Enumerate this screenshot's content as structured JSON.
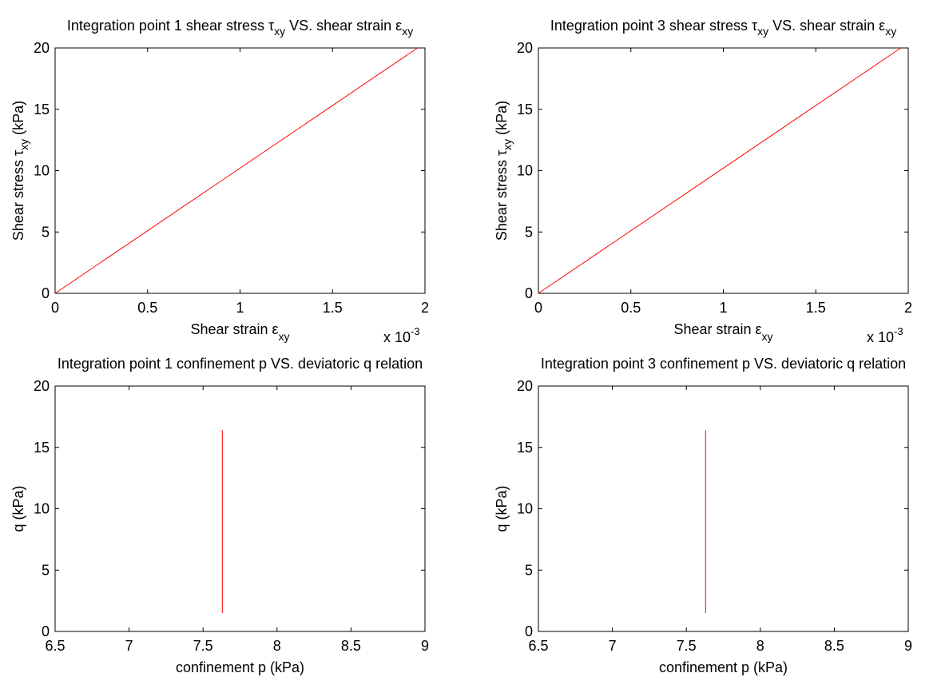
{
  "chart_data": [
    {
      "type": "line",
      "title": "Integration point 1 shear stress",
      "title_sym": "τ",
      "title_sub": "xy",
      "title_mid": " VS. shear strain ",
      "title_sym2": "ε",
      "title_sub2": "xy",
      "xlabel": "Shear strain ",
      "xlabel_sym": "ε",
      "xlabel_sub": "xy",
      "ylabel": "Shear stress ",
      "ylabel_sym": "τ",
      "ylabel_sub": "xy",
      "ylabel_suffix": " (kPa)",
      "exponent_label": "x 10",
      "exponent_power": "-3",
      "xlim": [
        0,
        2
      ],
      "ylim": [
        0,
        20
      ],
      "xticks": [
        "0",
        "0.5",
        "1",
        "1.5",
        "2"
      ],
      "yticks": [
        "0",
        "5",
        "10",
        "15",
        "20"
      ],
      "series": [
        {
          "x": [
            0,
            1.96
          ],
          "y": [
            0,
            20
          ]
        }
      ],
      "line_color": "#ff0000",
      "grid": false
    },
    {
      "type": "line",
      "title": "Integration point 3 shear stress",
      "title_sym": "τ",
      "title_sub": "xy",
      "title_mid": " VS. shear strain ",
      "title_sym2": "ε",
      "title_sub2": "xy",
      "xlabel": "Shear strain ",
      "xlabel_sym": "ε",
      "xlabel_sub": "xy",
      "ylabel": "Shear stress ",
      "ylabel_sym": "τ",
      "ylabel_sub": "xy",
      "ylabel_suffix": " (kPa)",
      "exponent_label": "x 10",
      "exponent_power": "-3",
      "xlim": [
        0,
        2
      ],
      "ylim": [
        0,
        20
      ],
      "xticks": [
        "0",
        "0.5",
        "1",
        "1.5",
        "2"
      ],
      "yticks": [
        "0",
        "5",
        "10",
        "15",
        "20"
      ],
      "series": [
        {
          "x": [
            0,
            1.96
          ],
          "y": [
            0,
            20
          ]
        }
      ],
      "line_color": "#ff0000",
      "grid": false
    },
    {
      "type": "line",
      "title": "Integration point 1 confinement p VS. deviatoric q relation",
      "xlabel": "confinement p (kPa)",
      "ylabel": "q (kPa)",
      "xlim": [
        6.5,
        9
      ],
      "ylim": [
        0,
        20
      ],
      "xticks": [
        "6.5",
        "7",
        "7.5",
        "8",
        "8.5",
        "9"
      ],
      "yticks": [
        "0",
        "5",
        "10",
        "15",
        "20"
      ],
      "series": [
        {
          "x": [
            7.63,
            7.63
          ],
          "y": [
            1.5,
            16.4
          ]
        }
      ],
      "line_color": "#ff0000",
      "grid": false
    },
    {
      "type": "line",
      "title": "Integration point 3 confinement p VS. deviatoric q relation",
      "xlabel": "confinement p (kPa)",
      "ylabel": "q (kPa)",
      "xlim": [
        6.5,
        9
      ],
      "ylim": [
        0,
        20
      ],
      "xticks": [
        "6.5",
        "7",
        "7.5",
        "8",
        "8.5",
        "9"
      ],
      "yticks": [
        "0",
        "5",
        "10",
        "15",
        "20"
      ],
      "series": [
        {
          "x": [
            7.63,
            7.63
          ],
          "y": [
            1.5,
            16.4
          ]
        }
      ],
      "line_color": "#ff0000",
      "grid": false
    }
  ]
}
